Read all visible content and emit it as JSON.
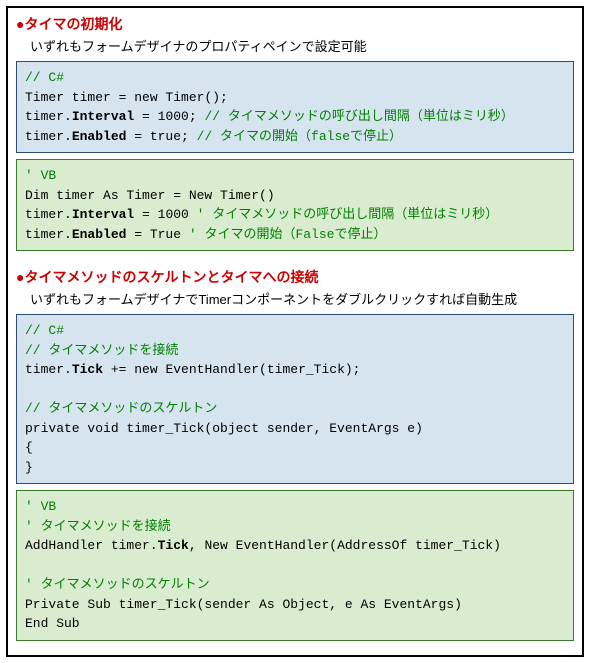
{
  "section1": {
    "title": "●タイマの初期化",
    "subtitle": "いずれもフォームデザイナのプロパティペインで設定可能",
    "csharp": {
      "l1": "// C#",
      "l2a": "Timer timer = new Timer();",
      "l3a": "timer.",
      "l3b": "Interval",
      "l3c": " = 1000; ",
      "l3d": "// タイマメソッドの呼び出し間隔（単位はミリ秒）",
      "l4a": "timer.",
      "l4b": "Enabled",
      "l4c": " = true; ",
      "l4d": "// タイマの開始（falseで停止）"
    },
    "vb": {
      "l1": "' VB",
      "l2a": "Dim timer As Timer = New Timer()",
      "l3a": "timer.",
      "l3b": "Interval",
      "l3c": " = 1000 ",
      "l3d": "' タイマメソッドの呼び出し間隔（単位はミリ秒）",
      "l4a": "timer.",
      "l4b": "Enabled",
      "l4c": " = True ",
      "l4d": "' タイマの開始（Falseで停止）"
    }
  },
  "section2": {
    "title": "●タイマメソッドのスケルトンとタイマへの接続",
    "subtitle": "いずれもフォームデザイナでTimerコンポーネントをダブルクリックすれば自動生成",
    "csharp": {
      "l1": "// C#",
      "l2": "// タイマメソッドを接続",
      "l3a": "timer.",
      "l3b": "Tick",
      "l3c": " += new EventHandler(timer_Tick);",
      "l4": "",
      "l5": "// タイマメソッドのスケルトン",
      "l6": "private void timer_Tick(object sender, EventArgs e)",
      "l7": "{",
      "l8": "}"
    },
    "vb": {
      "l1": "' VB",
      "l2": "' タイマメソッドを接続",
      "l3a": "AddHandler timer.",
      "l3b": "Tick",
      "l3c": ", New EventHandler(AddressOf timer_Tick)",
      "l4": "",
      "l5": "' タイマメソッドのスケルトン",
      "l6": "Private Sub timer_Tick(sender As Object, e As EventArgs)",
      "l7": "End Sub"
    }
  },
  "colors": {
    "title": "#cc0000",
    "comment": "#008000",
    "csharp_bg": "#d6e4f0",
    "csharp_border": "#2b4d7a",
    "vb_bg": "#d9ecd0",
    "vb_border": "#3a7a2b",
    "page_bg": "#ffffff",
    "outer_border": "#000000"
  }
}
